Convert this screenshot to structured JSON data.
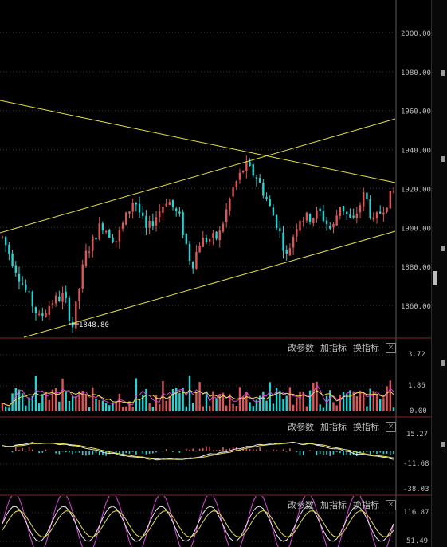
{
  "main_chart": {
    "y_ticks": [
      "2000.00",
      "1980.00",
      "1960.00",
      "1940.00",
      "1920.00",
      "1900.00",
      "1880.00",
      "1860.00"
    ],
    "y_values": [
      2000,
      1980,
      1960,
      1940,
      1920,
      1900,
      1880,
      1860
    ],
    "low_annotation": "1848.80"
  },
  "panel_buttons": {
    "params_label": "改参数",
    "add_indicator_label": "加指标",
    "switch_indicator_label": "换指标"
  },
  "volume_panel": {
    "y_ticks": [
      "3.72",
      "1.86",
      "0.00"
    ]
  },
  "macd_panel": {
    "y_ticks": [
      "15.27",
      "-11.68",
      "-38.03"
    ]
  },
  "kdj_panel": {
    "y_ticks": [
      "116.87",
      "51.49"
    ]
  },
  "colors": {
    "up": "#e05555",
    "down": "#2ad3d3",
    "trendline": "#e6e04a",
    "ma_magenta": "#e040e0",
    "ma_yellow": "#e6e04a",
    "ma_white": "#e8e8e8"
  }
}
